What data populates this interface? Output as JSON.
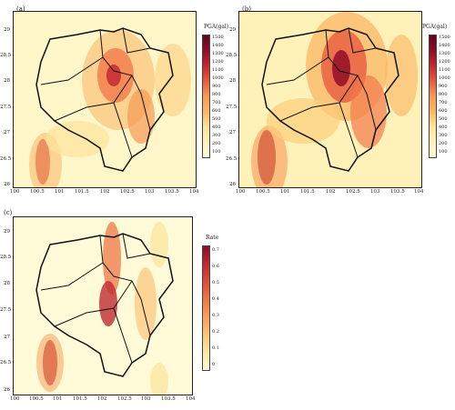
{
  "panels": [
    {
      "label": "(a)",
      "colorbar_title": "PGA(gal)",
      "colorbar_ticks": [
        "1500",
        "1400",
        "1300",
        "1200",
        "1100",
        "1000",
        "900",
        "800",
        "700",
        "600",
        "500",
        "400",
        "300",
        "200",
        "100"
      ]
    },
    {
      "label": "(b)",
      "colorbar_title": "PGA(gal)",
      "colorbar_ticks": [
        "1500",
        "1400",
        "1300",
        "1200",
        "1100",
        "1000",
        "900",
        "800",
        "700",
        "600",
        "500",
        "400",
        "300",
        "200",
        "100"
      ]
    },
    {
      "label": "(c)",
      "colorbar_title": "Rate",
      "colorbar_ticks": [
        "0.7",
        "0.6",
        "0.5",
        "0.4",
        "0.3",
        "0.2",
        "0.1",
        "0"
      ]
    }
  ],
  "axes": {
    "x_ticks": [
      "100",
      "100.5",
      "101",
      "101.5",
      "102",
      "102.5",
      "103",
      "103.5",
      "104"
    ],
    "y_ticks": [
      "29",
      "28.5",
      "28",
      "27.5",
      "27",
      "26.5",
      "26"
    ]
  },
  "colors": {
    "pga_scale": [
      "#fffbd8",
      "#fff2b8",
      "#fde49a",
      "#fccf7c",
      "#fbb766",
      "#f79a55",
      "#f2794a",
      "#e75b40",
      "#d63f38",
      "#c12a31",
      "#a9182c",
      "#8f0d28",
      "#770622",
      "#63031e"
    ],
    "rate_scale": [
      "#fffbd8",
      "#fde7a4",
      "#fbc57c",
      "#f7a05c",
      "#ee7747",
      "#dc4e3b",
      "#bf2b31",
      "#8c0b27"
    ],
    "boundary": "#111111"
  }
}
